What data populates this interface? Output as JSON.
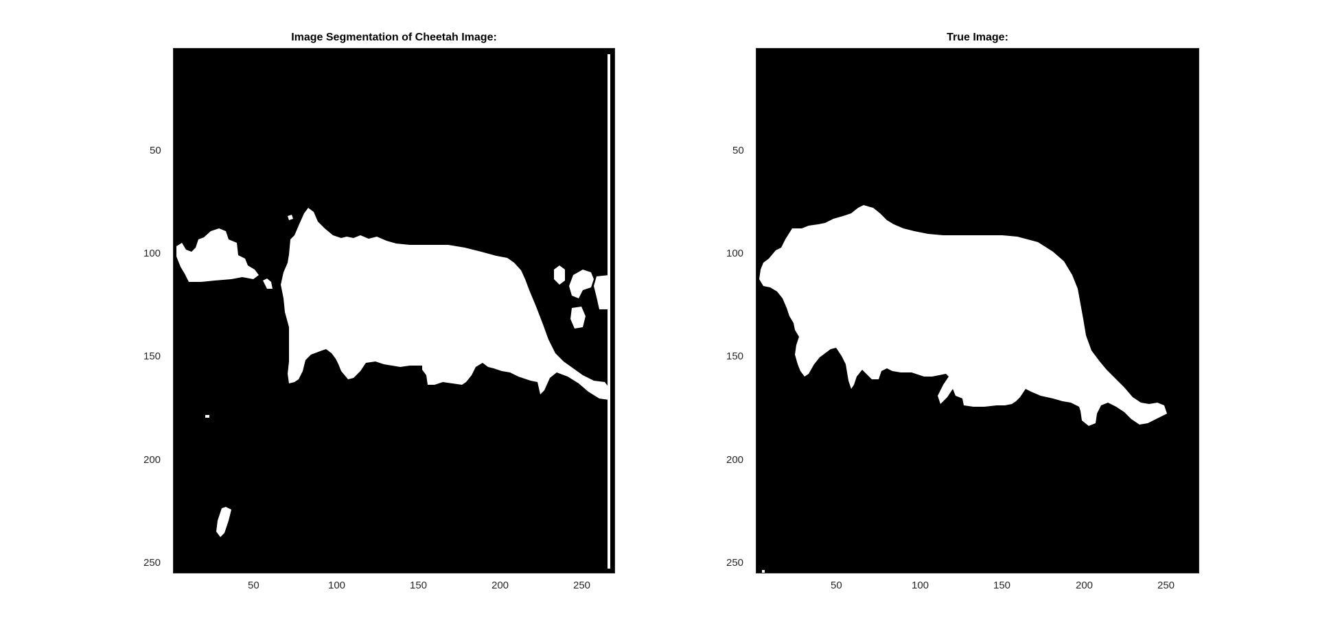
{
  "chart_data": [
    {
      "type": "heatmap",
      "title": "Image Segmentation of Cheetah Image:",
      "colormap": [
        "#000000",
        "#ffffff"
      ],
      "xlim": [
        0.5,
        270.5
      ],
      "ylim": [
        0.5,
        255.5
      ],
      "y_reversed": true,
      "xticks": [
        50,
        100,
        150,
        200,
        250
      ],
      "yticks": [
        50,
        100,
        150,
        200,
        250
      ],
      "xtick_labels": [
        "50",
        "100",
        "150",
        "200",
        "250"
      ],
      "ytick_labels": [
        "50",
        "100",
        "150",
        "200",
        "250"
      ]
    },
    {
      "type": "heatmap",
      "title": "True Image:",
      "colormap": [
        "#000000",
        "#ffffff"
      ],
      "xlim": [
        0.5,
        270.5
      ],
      "ylim": [
        0.5,
        255.5
      ],
      "y_reversed": true,
      "xticks": [
        50,
        100,
        150,
        200,
        250
      ],
      "yticks": [
        50,
        100,
        150,
        200,
        250
      ],
      "xtick_labels": [
        "50",
        "100",
        "150",
        "200",
        "250"
      ],
      "ytick_labels": [
        "50",
        "100",
        "150",
        "200",
        "250"
      ]
    }
  ]
}
